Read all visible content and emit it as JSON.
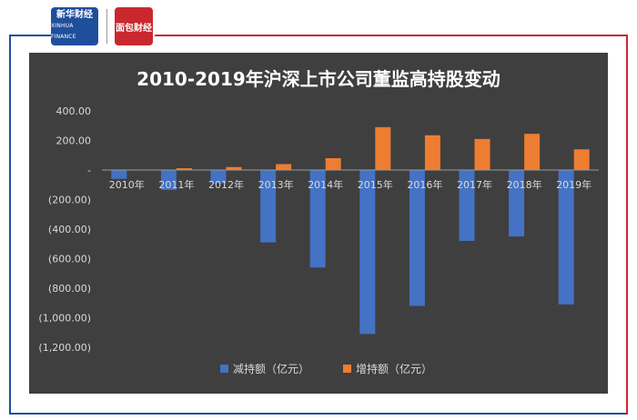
{
  "header": {
    "logo_left_text": "新华财经",
    "logo_left_sub": "XINHUA FINANCE",
    "logo_right_text": "面包财经"
  },
  "colors": {
    "background": "#3f3f3f",
    "reduce_series": "#4472c4",
    "increase_series": "#ed7d31",
    "frame_blue": "#1f4f9c",
    "frame_red": "#c9282e"
  },
  "chart_data": {
    "type": "bar",
    "title": "2010-2019年沪深上市公司董监高持股变动",
    "categories": [
      "2010年",
      "2011年",
      "2012年",
      "2013年",
      "2014年",
      "2015年",
      "2016年",
      "2017年",
      "2018年",
      "2019年"
    ],
    "series": [
      {
        "name": "减持额（亿元）",
        "values": [
          -60,
          -135,
          -90,
          -490,
          -660,
          -1110,
          -920,
          -480,
          -450,
          -910
        ]
      },
      {
        "name": "增持额（亿元）",
        "values": [
          3,
          12,
          20,
          40,
          80,
          290,
          235,
          210,
          245,
          140
        ]
      }
    ],
    "y_ticks": [
      "400.00",
      "200.00",
      "-",
      "(200.00)",
      "(400.00)",
      "(600.00)",
      "(800.00)",
      "(1,000.00)",
      "(1,200.00)"
    ],
    "ylim": [
      -1200,
      400
    ],
    "legend_position": "bottom",
    "grid": false
  }
}
